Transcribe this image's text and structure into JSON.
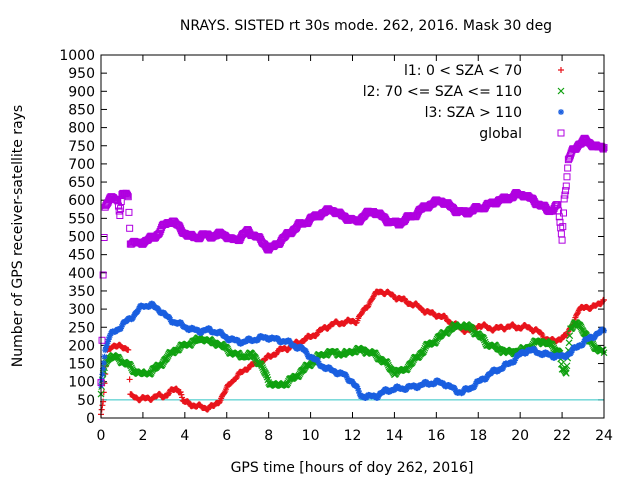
{
  "chart_data": {
    "type": "scatter",
    "title": "NRAYS. SISTED rt 30s mode. 262, 2016. Mask 30 deg",
    "xlabel": "GPS time [hours of doy 262, 2016]",
    "ylabel": "Number of GPS receiver-satellite rays",
    "xlim": [
      0,
      24
    ],
    "ylim": [
      0,
      1000
    ],
    "xticks": [
      "0",
      "2",
      "4",
      "6",
      "8",
      "10",
      "12",
      "14",
      "16",
      "18",
      "20",
      "22",
      "24"
    ],
    "yticks": [
      "0",
      "50",
      "100",
      "150",
      "200",
      "250",
      "300",
      "350",
      "400",
      "450",
      "500",
      "550",
      "600",
      "650",
      "700",
      "750",
      "800",
      "850",
      "900",
      "950",
      "1000"
    ],
    "legend_position": "top-right",
    "reference_line": {
      "y": 50,
      "color": "#2ec4c4"
    },
    "series": [
      {
        "name": "l1: 0 < SZA < 70",
        "color": "#e8141c",
        "marker": "+",
        "points": [
          [
            0,
            10
          ],
          [
            0.1,
            40
          ],
          [
            0.2,
            120
          ],
          [
            0.3,
            185
          ],
          [
            0.5,
            200
          ],
          [
            0.8,
            195
          ],
          [
            1.0,
            198
          ],
          [
            1.3,
            190
          ],
          [
            1.4,
            60
          ],
          [
            1.8,
            55
          ],
          [
            2.2,
            52
          ],
          [
            2.6,
            60
          ],
          [
            3.0,
            60
          ],
          [
            3.3,
            72
          ],
          [
            3.6,
            80
          ],
          [
            3.8,
            75
          ],
          [
            3.9,
            45
          ],
          [
            4.2,
            40
          ],
          [
            4.6,
            32
          ],
          [
            5.0,
            28
          ],
          [
            5.4,
            32
          ],
          [
            5.6,
            45
          ],
          [
            5.9,
            70
          ],
          [
            6.2,
            100
          ],
          [
            6.6,
            120
          ],
          [
            7.0,
            140
          ],
          [
            7.4,
            150
          ],
          [
            7.8,
            160
          ],
          [
            8.2,
            175
          ],
          [
            8.6,
            188
          ],
          [
            9.0,
            195
          ],
          [
            9.4,
            208
          ],
          [
            9.8,
            218
          ],
          [
            10.2,
            230
          ],
          [
            10.6,
            245
          ],
          [
            11.0,
            258
          ],
          [
            11.4,
            262
          ],
          [
            11.8,
            265
          ],
          [
            12.2,
            268
          ],
          [
            12.6,
            300
          ],
          [
            13.0,
            335
          ],
          [
            13.3,
            350
          ],
          [
            13.6,
            345
          ],
          [
            14.0,
            335
          ],
          [
            14.4,
            325
          ],
          [
            14.8,
            315
          ],
          [
            15.2,
            305
          ],
          [
            15.6,
            290
          ],
          [
            16.0,
            285
          ],
          [
            16.4,
            275
          ],
          [
            16.8,
            260
          ],
          [
            17.2,
            245
          ],
          [
            17.6,
            240
          ],
          [
            18.0,
            255
          ],
          [
            18.4,
            250
          ],
          [
            18.8,
            245
          ],
          [
            19.2,
            250
          ],
          [
            19.6,
            252
          ],
          [
            20.0,
            250
          ],
          [
            20.4,
            250
          ],
          [
            20.8,
            240
          ],
          [
            21.2,
            220
          ],
          [
            21.6,
            210
          ],
          [
            21.9,
            220
          ],
          [
            22.2,
            225
          ],
          [
            22.5,
            260
          ],
          [
            22.8,
            295
          ],
          [
            23.1,
            310
          ],
          [
            23.4,
            300
          ],
          [
            23.7,
            315
          ],
          [
            24.0,
            325
          ]
        ]
      },
      {
        "name": "l2: 70 <= SZA <= 110",
        "color": "#10a010",
        "marker": "x",
        "points": [
          [
            0,
            60
          ],
          [
            0.1,
            120
          ],
          [
            0.2,
            150
          ],
          [
            0.4,
            170
          ],
          [
            0.8,
            165
          ],
          [
            1.2,
            150
          ],
          [
            1.6,
            130
          ],
          [
            2.0,
            120
          ],
          [
            2.4,
            128
          ],
          [
            2.8,
            145
          ],
          [
            3.2,
            170
          ],
          [
            3.6,
            190
          ],
          [
            4.0,
            200
          ],
          [
            4.4,
            210
          ],
          [
            4.8,
            220
          ],
          [
            5.2,
            210
          ],
          [
            5.6,
            205
          ],
          [
            6.0,
            190
          ],
          [
            6.4,
            175
          ],
          [
            6.8,
            170
          ],
          [
            7.2,
            175
          ],
          [
            7.6,
            150
          ],
          [
            8.0,
            100
          ],
          [
            8.4,
            88
          ],
          [
            8.8,
            95
          ],
          [
            9.2,
            110
          ],
          [
            9.6,
            130
          ],
          [
            10.0,
            150
          ],
          [
            10.4,
            170
          ],
          [
            10.8,
            180
          ],
          [
            11.2,
            180
          ],
          [
            11.6,
            175
          ],
          [
            12.0,
            185
          ],
          [
            12.4,
            188
          ],
          [
            12.8,
            182
          ],
          [
            13.2,
            170
          ],
          [
            13.6,
            150
          ],
          [
            14.0,
            125
          ],
          [
            14.4,
            130
          ],
          [
            14.8,
            150
          ],
          [
            15.2,
            175
          ],
          [
            15.6,
            200
          ],
          [
            16.0,
            215
          ],
          [
            16.4,
            235
          ],
          [
            16.8,
            250
          ],
          [
            17.2,
            255
          ],
          [
            17.6,
            250
          ],
          [
            18.0,
            230
          ],
          [
            18.4,
            205
          ],
          [
            18.8,
            195
          ],
          [
            19.2,
            185
          ],
          [
            19.6,
            180
          ],
          [
            20.0,
            185
          ],
          [
            20.4,
            195
          ],
          [
            20.8,
            210
          ],
          [
            21.2,
            210
          ],
          [
            21.6,
            195
          ],
          [
            21.9,
            180
          ],
          [
            22.0,
            130
          ],
          [
            22.2,
            125
          ],
          [
            22.4,
            250
          ],
          [
            22.7,
            260
          ],
          [
            23.0,
            245
          ],
          [
            23.3,
            210
          ],
          [
            23.6,
            195
          ],
          [
            24.0,
            180
          ]
        ]
      },
      {
        "name": "l3: SZA > 110",
        "color": "#1a5fe0",
        "marker": "*",
        "points": [
          [
            0,
            85
          ],
          [
            0.1,
            140
          ],
          [
            0.2,
            190
          ],
          [
            0.4,
            225
          ],
          [
            0.8,
            245
          ],
          [
            1.2,
            265
          ],
          [
            1.6,
            285
          ],
          [
            2.0,
            310
          ],
          [
            2.4,
            310
          ],
          [
            2.8,
            298
          ],
          [
            3.2,
            275
          ],
          [
            3.6,
            262
          ],
          [
            4.0,
            252
          ],
          [
            4.4,
            242
          ],
          [
            4.8,
            240
          ],
          [
            5.2,
            242
          ],
          [
            5.6,
            235
          ],
          [
            6.0,
            222
          ],
          [
            6.4,
            212
          ],
          [
            6.8,
            210
          ],
          [
            7.2,
            215
          ],
          [
            7.6,
            220
          ],
          [
            8.0,
            222
          ],
          [
            8.4,
            215
          ],
          [
            8.8,
            212
          ],
          [
            9.2,
            200
          ],
          [
            9.6,
            190
          ],
          [
            10.0,
            170
          ],
          [
            10.4,
            150
          ],
          [
            10.8,
            135
          ],
          [
            11.2,
            128
          ],
          [
            11.6,
            118
          ],
          [
            12.0,
            100
          ],
          [
            12.4,
            62
          ],
          [
            12.8,
            58
          ],
          [
            13.2,
            62
          ],
          [
            13.6,
            75
          ],
          [
            14.0,
            80
          ],
          [
            14.4,
            82
          ],
          [
            14.8,
            85
          ],
          [
            15.2,
            90
          ],
          [
            15.6,
            95
          ],
          [
            16.0,
            98
          ],
          [
            16.4,
            95
          ],
          [
            16.8,
            80
          ],
          [
            17.2,
            70
          ],
          [
            17.6,
            82
          ],
          [
            18.0,
            98
          ],
          [
            18.4,
            115
          ],
          [
            18.8,
            130
          ],
          [
            19.2,
            140
          ],
          [
            19.6,
            155
          ],
          [
            20.0,
            175
          ],
          [
            20.4,
            188
          ],
          [
            20.8,
            182
          ],
          [
            21.2,
            175
          ],
          [
            21.6,
            172
          ],
          [
            22.0,
            168
          ],
          [
            22.4,
            180
          ],
          [
            22.8,
            200
          ],
          [
            23.2,
            215
          ],
          [
            23.6,
            230
          ],
          [
            24.0,
            240
          ]
        ]
      },
      {
        "name": "global",
        "color": "#b000e0",
        "marker": "square",
        "points": [
          [
            0,
            100
          ],
          [
            0.05,
            220
          ],
          [
            0.1,
            400
          ],
          [
            0.15,
            500
          ],
          [
            0.2,
            580
          ],
          [
            0.4,
            600
          ],
          [
            0.6,
            610
          ],
          [
            0.8,
            600
          ],
          [
            0.9,
            560
          ],
          [
            1.0,
            610
          ],
          [
            1.2,
            620
          ],
          [
            1.3,
            610
          ],
          [
            1.4,
            485
          ],
          [
            1.8,
            480
          ],
          [
            2.2,
            490
          ],
          [
            2.6,
            500
          ],
          [
            3.0,
            530
          ],
          [
            3.4,
            545
          ],
          [
            3.8,
            520
          ],
          [
            4.2,
            500
          ],
          [
            4.6,
            498
          ],
          [
            5.0,
            505
          ],
          [
            5.4,
            500
          ],
          [
            5.8,
            510
          ],
          [
            6.2,
            490
          ],
          [
            6.6,
            495
          ],
          [
            7.0,
            515
          ],
          [
            7.4,
            500
          ],
          [
            7.8,
            480
          ],
          [
            8.0,
            465
          ],
          [
            8.2,
            470
          ],
          [
            8.6,
            490
          ],
          [
            9.0,
            510
          ],
          [
            9.4,
            530
          ],
          [
            9.8,
            540
          ],
          [
            10.2,
            555
          ],
          [
            10.6,
            565
          ],
          [
            11.0,
            575
          ],
          [
            11.4,
            560
          ],
          [
            11.8,
            550
          ],
          [
            12.2,
            540
          ],
          [
            12.6,
            560
          ],
          [
            13.0,
            570
          ],
          [
            13.4,
            555
          ],
          [
            13.8,
            540
          ],
          [
            14.2,
            535
          ],
          [
            14.6,
            550
          ],
          [
            15.0,
            560
          ],
          [
            15.4,
            580
          ],
          [
            15.8,
            590
          ],
          [
            16.2,
            600
          ],
          [
            16.6,
            585
          ],
          [
            17.0,
            570
          ],
          [
            17.4,
            565
          ],
          [
            17.8,
            575
          ],
          [
            18.2,
            580
          ],
          [
            18.6,
            590
          ],
          [
            19.0,
            600
          ],
          [
            19.4,
            605
          ],
          [
            19.8,
            615
          ],
          [
            20.2,
            615
          ],
          [
            20.6,
            600
          ],
          [
            21.0,
            585
          ],
          [
            21.4,
            570
          ],
          [
            21.8,
            585
          ],
          [
            22.0,
            490
          ],
          [
            22.1,
            610
          ],
          [
            22.2,
            640
          ],
          [
            22.3,
            710
          ],
          [
            22.5,
            735
          ],
          [
            22.8,
            755
          ],
          [
            23.1,
            765
          ],
          [
            23.4,
            755
          ],
          [
            23.7,
            745
          ],
          [
            24.0,
            745
          ]
        ]
      }
    ]
  }
}
